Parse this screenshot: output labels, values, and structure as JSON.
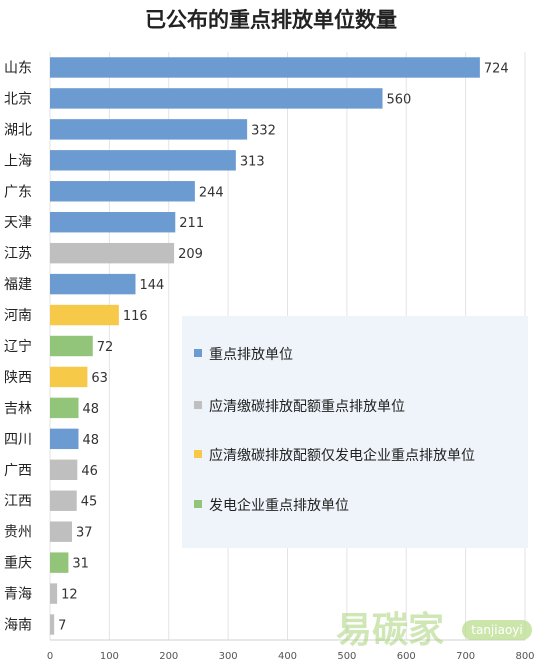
{
  "chart_data": {
    "type": "bar",
    "orientation": "horizontal",
    "title": "已公布的重点排放单位数量",
    "xlabel": "",
    "ylabel": "",
    "xlim": [
      0,
      800
    ],
    "x_ticks": [
      0,
      100,
      200,
      300,
      400,
      500,
      600,
      700,
      800
    ],
    "grid": true,
    "legend_position": "right",
    "categories": [
      "山东",
      "北京",
      "湖北",
      "上海",
      "广东",
      "天津",
      "江苏",
      "福建",
      "河南",
      "辽宁",
      "陕西",
      "吉林",
      "四川",
      "广西",
      "江西",
      "贵州",
      "重庆",
      "青海",
      "海南"
    ],
    "values": [
      724,
      560,
      332,
      313,
      244,
      211,
      209,
      144,
      116,
      72,
      63,
      48,
      48,
      46,
      45,
      37,
      31,
      12,
      7
    ],
    "groups": [
      0,
      0,
      0,
      0,
      0,
      0,
      1,
      0,
      2,
      3,
      2,
      3,
      0,
      1,
      1,
      1,
      3,
      1,
      1
    ],
    "legend": [
      {
        "name": "重点排放单位",
        "color": "#6b9bd1"
      },
      {
        "name": "应清缴碳排放配额重点排放单位",
        "color": "#bfbfbf"
      },
      {
        "name": "应清缴碳排放配额仅发电企业重点排放单位",
        "color": "#f7c948"
      },
      {
        "name": "发电企业重点排放单位",
        "color": "#92c47a"
      }
    ]
  },
  "watermark": {
    "main": "易碳家",
    "sub": "tanjiaoyi"
  }
}
